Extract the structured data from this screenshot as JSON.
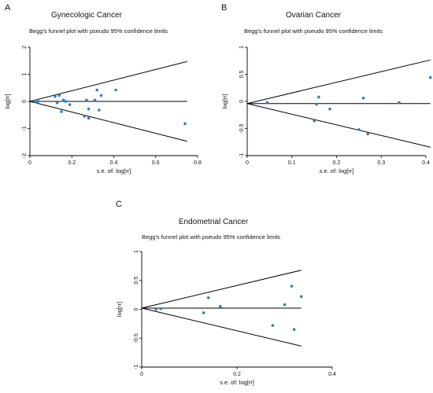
{
  "chart_data": [
    {
      "panel": "A",
      "type": "scatter",
      "title": "Gynecologic Cancer",
      "subtitle": "Begg's funnel plot with pseudo 95% confidence limits",
      "xlabel": "s.e. of: log[rr]",
      "ylabel": "log[rr]",
      "xlim": [
        0,
        0.8
      ],
      "ylim": [
        -2,
        2
      ],
      "xticks": [
        "0",
        "0.2",
        "0.4",
        "0.6",
        "0.8"
      ],
      "yticks": [
        "2",
        "1",
        "0",
        "-1",
        "-2"
      ],
      "pooled": 0,
      "funnel_se_max": 0.75,
      "points": [
        {
          "x": 0.02,
          "y": 0.02
        },
        {
          "x": 0.03,
          "y": -0.02
        },
        {
          "x": 0.04,
          "y": 0.0
        },
        {
          "x": 0.12,
          "y": 0.18
        },
        {
          "x": 0.13,
          "y": -0.05
        },
        {
          "x": 0.14,
          "y": 0.22
        },
        {
          "x": 0.15,
          "y": -0.38
        },
        {
          "x": 0.16,
          "y": 0.05
        },
        {
          "x": 0.17,
          "y": 0.0
        },
        {
          "x": 0.19,
          "y": -0.12
        },
        {
          "x": 0.26,
          "y": -0.55
        },
        {
          "x": 0.27,
          "y": 0.05
        },
        {
          "x": 0.28,
          "y": -0.28
        },
        {
          "x": 0.28,
          "y": -0.62
        },
        {
          "x": 0.31,
          "y": 0.05
        },
        {
          "x": 0.32,
          "y": 0.42
        },
        {
          "x": 0.33,
          "y": -0.32
        },
        {
          "x": 0.34,
          "y": 0.22
        },
        {
          "x": 0.41,
          "y": 0.42
        },
        {
          "x": 0.74,
          "y": -0.82
        }
      ]
    },
    {
      "panel": "B",
      "type": "scatter",
      "title": "Ovarian Cancer",
      "subtitle": "Begg's funnel plot with pseudo 95% confidence limits",
      "xlabel": "s.e. of: log[rr]",
      "ylabel": "log[rr]",
      "xlim": [
        0,
        0.4
      ],
      "ylim": [
        -1,
        1
      ],
      "xticks": [
        "0",
        "0.1",
        "0.2",
        "0.3",
        "0.4"
      ],
      "yticks": [
        "1",
        "0.5",
        "0",
        "-0.5",
        "-1"
      ],
      "pooled": -0.04,
      "funnel_se_max": 0.41,
      "points": [
        {
          "x": 0.045,
          "y": -0.02
        },
        {
          "x": 0.15,
          "y": -0.36
        },
        {
          "x": 0.155,
          "y": -0.05
        },
        {
          "x": 0.16,
          "y": 0.08
        },
        {
          "x": 0.185,
          "y": -0.14
        },
        {
          "x": 0.25,
          "y": -0.52
        },
        {
          "x": 0.26,
          "y": 0.06
        },
        {
          "x": 0.27,
          "y": -0.6
        },
        {
          "x": 0.34,
          "y": -0.02
        },
        {
          "x": 0.41,
          "y": 0.44
        }
      ]
    },
    {
      "panel": "C",
      "type": "scatter",
      "title": "Endometrial Cancer",
      "subtitle": "Begg's funnel plot with pseudo 95% confidence limits",
      "xlabel": "s.e. of: log[rr]",
      "ylabel": "log[rr]",
      "xlim": [
        0,
        0.4
      ],
      "ylim": [
        -1,
        1
      ],
      "xticks": [
        "0",
        "0.2",
        "0.4"
      ],
      "yticks": [
        "1",
        "0.5",
        "0",
        "-0.5",
        "-1"
      ],
      "pooled": 0.02,
      "funnel_se_max": 0.335,
      "points": [
        {
          "x": 0.03,
          "y": 0.0
        },
        {
          "x": 0.04,
          "y": 0.01
        },
        {
          "x": 0.13,
          "y": -0.06
        },
        {
          "x": 0.14,
          "y": 0.2
        },
        {
          "x": 0.165,
          "y": 0.05
        },
        {
          "x": 0.275,
          "y": -0.28
        },
        {
          "x": 0.3,
          "y": 0.08
        },
        {
          "x": 0.315,
          "y": 0.4
        },
        {
          "x": 0.32,
          "y": -0.35
        },
        {
          "x": 0.335,
          "y": 0.22
        }
      ]
    }
  ]
}
